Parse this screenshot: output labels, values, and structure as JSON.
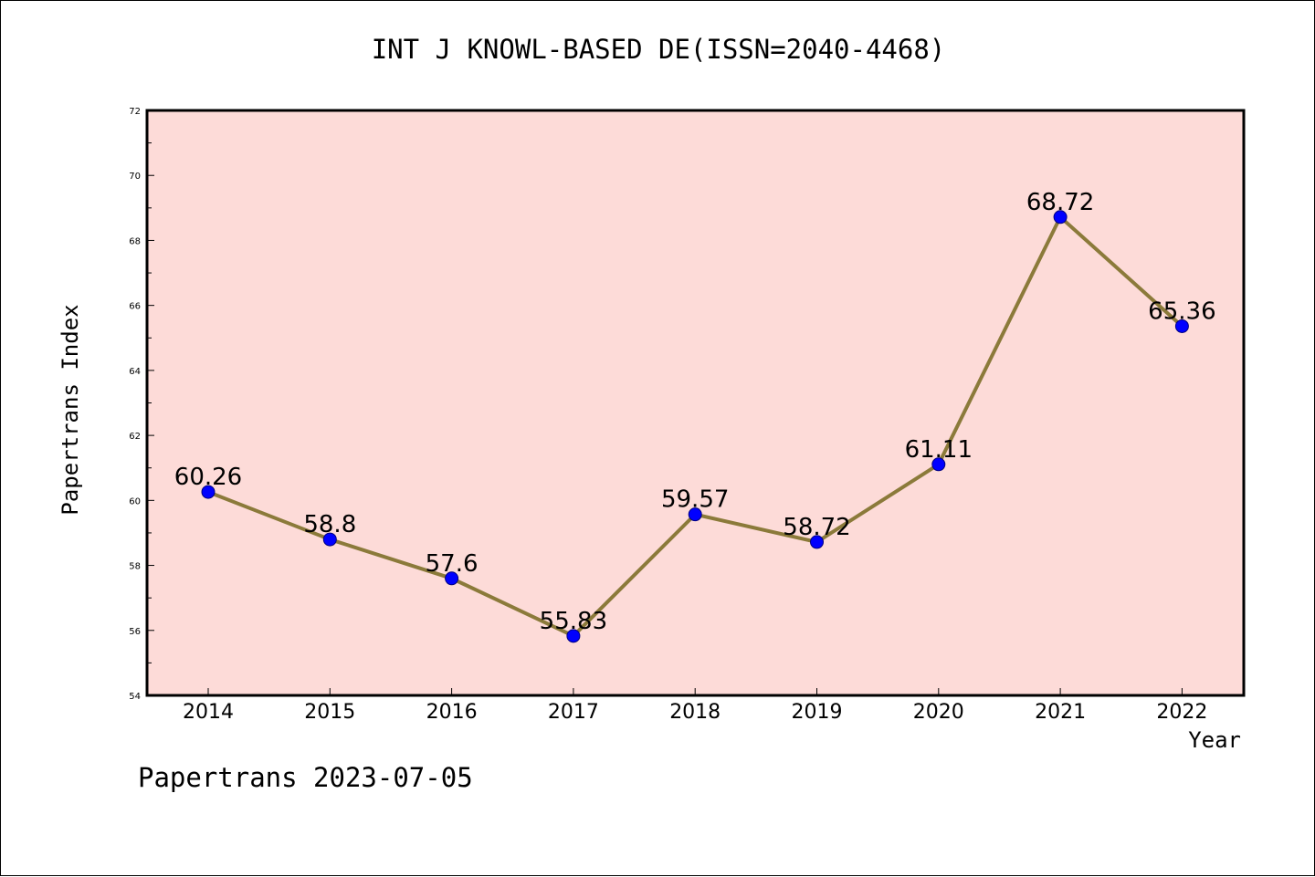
{
  "chart_data": {
    "type": "line",
    "title": "INT J KNOWL-BASED DE(ISSN=2040-4468)",
    "xlabel": "Year",
    "ylabel": "Papertrans Index",
    "categories": [
      "2014",
      "2015",
      "2016",
      "2017",
      "2018",
      "2019",
      "2020",
      "2021",
      "2022"
    ],
    "values": [
      60.26,
      58.8,
      57.6,
      55.83,
      59.57,
      58.72,
      61.11,
      68.72,
      65.36
    ],
    "data_labels": [
      "60.26",
      "58.8",
      "57.6",
      "55.83",
      "59.57",
      "58.72",
      "61.11",
      "68.72",
      "65.36"
    ],
    "ylim": [
      54,
      72
    ],
    "yticks": [
      54,
      56,
      58,
      60,
      62,
      64,
      66,
      68,
      70,
      72
    ],
    "grid": false,
    "colors": {
      "plot_background": "#fddbd8",
      "line": "#8b7a3a",
      "marker": "#0000ff"
    }
  },
  "footer": {
    "text": "Papertrans 2023-07-05"
  }
}
